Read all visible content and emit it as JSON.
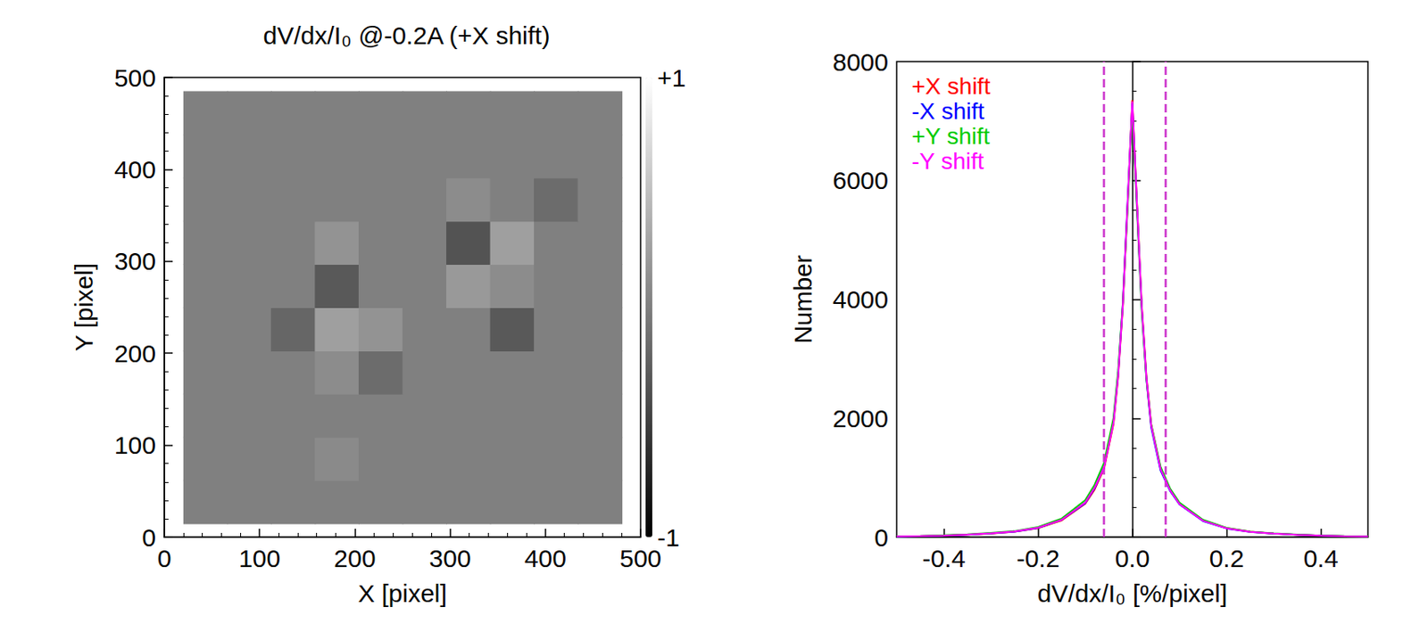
{
  "chart_data": [
    {
      "type": "heatmap",
      "title": "dV/dx/I₀ @-0.2A (+X shift)",
      "x_label": "X [pixel]",
      "y_label": "Y [pixel]",
      "xlim": [
        0,
        500
      ],
      "ylim": [
        0,
        500
      ],
      "xticks": [
        0,
        100,
        200,
        300,
        400,
        500
      ],
      "yticks": [
        0,
        100,
        200,
        300,
        400,
        500
      ],
      "x": [
        43,
        89,
        135,
        181,
        227,
        273,
        319,
        365,
        411,
        457
      ],
      "y": [
        38.5,
        85.5,
        132.5,
        179.5,
        226.5,
        273.5,
        320.5,
        367.5,
        414.5,
        461.5
      ],
      "cells": [
        [
          0,
          0,
          0,
          0,
          0,
          0,
          0,
          0,
          0,
          0
        ],
        [
          0,
          0,
          0,
          0.08,
          0,
          0,
          0,
          0,
          0,
          0
        ],
        [
          0,
          0,
          0,
          0,
          0,
          0,
          0,
          0,
          0,
          0
        ],
        [
          0,
          0,
          0,
          0.1,
          -0.15,
          0,
          0,
          0,
          0,
          0
        ],
        [
          0,
          0,
          -0.2,
          0.25,
          0.15,
          0,
          0,
          -0.3,
          0,
          0
        ],
        [
          0,
          0,
          0,
          -0.3,
          0,
          0,
          0.2,
          0.1,
          0,
          0
        ],
        [
          0,
          0,
          0,
          0.15,
          0,
          0,
          -0.35,
          0.25,
          0,
          0
        ],
        [
          0,
          0,
          0,
          0,
          0,
          0,
          0.1,
          0,
          -0.15,
          0
        ],
        [
          0,
          0,
          0,
          0,
          0,
          0,
          0,
          0,
          0,
          0
        ],
        [
          0,
          0,
          0,
          0,
          0,
          0,
          0,
          0,
          0,
          0
        ]
      ],
      "colorbar": {
        "range": [
          -1,
          1
        ],
        "ticks": [
          {
            "value": 1,
            "label": "+1"
          },
          {
            "value": -1,
            "label": "-1"
          }
        ]
      }
    },
    {
      "type": "line",
      "x_label": "dV/dx/I₀ [%/pixel]",
      "y_label": "Number",
      "xlim": [
        -0.5,
        0.5
      ],
      "ylim": [
        0,
        8000
      ],
      "xticks": [
        -0.4,
        -0.2,
        {
          "value": 0,
          "label": "0.0"
        },
        0.2,
        0.4
      ],
      "yticks": [
        0,
        2000,
        4000,
        6000,
        8000
      ],
      "legend": "upper left",
      "x": [
        -0.5,
        -0.45,
        -0.4,
        -0.35,
        -0.3,
        -0.25,
        -0.2,
        -0.15,
        -0.1,
        -0.08,
        -0.06,
        -0.04,
        -0.03,
        -0.02,
        -0.01,
        0,
        0.01,
        0.02,
        0.03,
        0.04,
        0.06,
        0.08,
        0.1,
        0.15,
        0.2,
        0.25,
        0.3,
        0.35,
        0.4,
        0.45,
        0.5
      ],
      "series": [
        {
          "name": "+X shift",
          "color": "#ff0000",
          "values": [
            10,
            15,
            25,
            40,
            60,
            90,
            150,
            280,
            560,
            800,
            1150,
            1900,
            2700,
            3900,
            5600,
            7350,
            5600,
            3900,
            2700,
            1900,
            1150,
            800,
            560,
            280,
            150,
            90,
            60,
            40,
            25,
            15,
            10
          ]
        },
        {
          "name": "-X shift",
          "color": "#0000ff",
          "values": [
            8,
            14,
            24,
            40,
            62,
            92,
            155,
            290,
            570,
            820,
            1180,
            1950,
            2750,
            3950,
            5650,
            7300,
            5550,
            3850,
            2650,
            1850,
            1120,
            780,
            550,
            270,
            145,
            88,
            58,
            38,
            24,
            14,
            9
          ]
        },
        {
          "name": "+Y shift",
          "color": "#00cc00",
          "values": [
            12,
            18,
            30,
            45,
            70,
            100,
            170,
            310,
            620,
            880,
            1250,
            2000,
            2800,
            3950,
            5550,
            7200,
            5500,
            3800,
            2650,
            1900,
            1180,
            820,
            580,
            290,
            155,
            92,
            62,
            42,
            26,
            16,
            11
          ]
        },
        {
          "name": "-Y shift",
          "color": "#ff00ff",
          "values": [
            10,
            16,
            26,
            42,
            64,
            94,
            158,
            290,
            580,
            830,
            1170,
            1920,
            2720,
            3920,
            5620,
            7330,
            5580,
            3880,
            2680,
            1880,
            1140,
            790,
            555,
            275,
            148,
            89,
            59,
            39,
            25,
            15,
            10
          ]
        }
      ],
      "reference_lines": {
        "x": [
          -0.055,
          0.065
        ],
        "color": "#cc33cc",
        "line_style": "dashed"
      }
    }
  ]
}
